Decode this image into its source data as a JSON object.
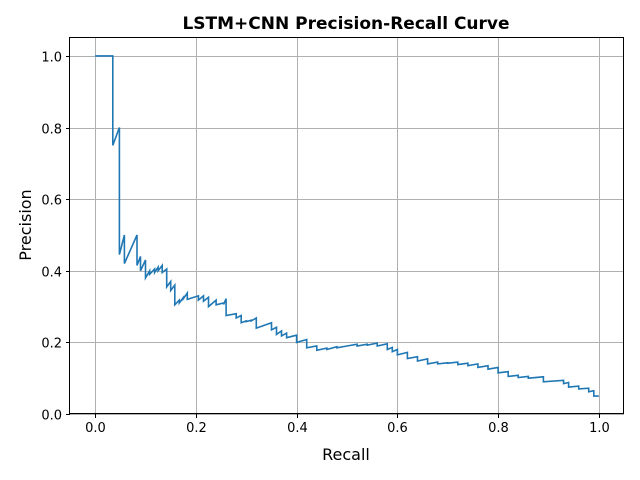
{
  "chart_data": {
    "type": "line",
    "title": "LSTM+CNN Precision-Recall Curve",
    "xlabel": "Recall",
    "ylabel": "Precision",
    "xlim": [
      -0.05,
      1.05
    ],
    "ylim": [
      0.0,
      1.05
    ],
    "xticks": [
      "0.0",
      "0.2",
      "0.4",
      "0.6",
      "0.8",
      "1.0"
    ],
    "yticks": [
      "0.0",
      "0.2",
      "0.4",
      "0.6",
      "0.8",
      "1.0"
    ],
    "grid": true,
    "line_color": "#1f77b4",
    "series": [
      {
        "x": [
          0.0,
          0.035,
          0.035,
          0.048,
          0.048,
          0.058,
          0.058,
          0.083,
          0.083,
          0.09,
          0.09,
          0.1,
          0.1,
          0.108,
          0.108,
          0.118,
          0.118,
          0.125,
          0.125,
          0.133,
          0.133,
          0.142,
          0.142,
          0.15,
          0.15,
          0.158,
          0.158,
          0.167,
          0.167,
          0.175,
          0.175,
          0.183,
          0.183,
          0.205,
          0.205,
          0.215,
          0.215,
          0.225,
          0.225,
          0.24,
          0.24,
          0.255,
          0.255,
          0.26,
          0.26,
          0.28,
          0.28,
          0.29,
          0.29,
          0.3,
          0.3,
          0.31,
          0.31,
          0.32,
          0.32,
          0.35,
          0.35,
          0.36,
          0.36,
          0.37,
          0.37,
          0.38,
          0.38,
          0.4,
          0.4,
          0.42,
          0.42,
          0.44,
          0.44,
          0.46,
          0.46,
          0.48,
          0.48,
          0.5,
          0.5,
          0.52,
          0.52,
          0.54,
          0.54,
          0.56,
          0.56,
          0.58,
          0.58,
          0.59,
          0.59,
          0.6,
          0.6,
          0.62,
          0.62,
          0.64,
          0.64,
          0.66,
          0.66,
          0.68,
          0.68,
          0.7,
          0.7,
          0.72,
          0.72,
          0.74,
          0.74,
          0.76,
          0.76,
          0.78,
          0.78,
          0.8,
          0.8,
          0.82,
          0.82,
          0.84,
          0.84,
          0.86,
          0.86,
          0.89,
          0.89,
          0.93,
          0.93,
          0.94,
          0.94,
          0.96,
          0.96,
          0.98,
          0.98,
          0.99,
          0.99,
          1.0
        ],
        "y": [
          1.0,
          1.0,
          0.75,
          0.8,
          0.445,
          0.5,
          0.42,
          0.5,
          0.415,
          0.44,
          0.4,
          0.43,
          0.38,
          0.4,
          0.39,
          0.405,
          0.395,
          0.41,
          0.4,
          0.415,
          0.395,
          0.405,
          0.355,
          0.37,
          0.345,
          0.36,
          0.305,
          0.318,
          0.31,
          0.325,
          0.322,
          0.338,
          0.32,
          0.33,
          0.318,
          0.33,
          0.315,
          0.326,
          0.3,
          0.318,
          0.305,
          0.31,
          0.306,
          0.322,
          0.275,
          0.28,
          0.268,
          0.275,
          0.255,
          0.26,
          0.258,
          0.262,
          0.26,
          0.268,
          0.24,
          0.255,
          0.235,
          0.242,
          0.222,
          0.232,
          0.218,
          0.226,
          0.213,
          0.22,
          0.2,
          0.208,
          0.185,
          0.19,
          0.178,
          0.184,
          0.18,
          0.188,
          0.185,
          0.19,
          0.19,
          0.195,
          0.19,
          0.195,
          0.192,
          0.198,
          0.19,
          0.196,
          0.18,
          0.186,
          0.174,
          0.18,
          0.165,
          0.172,
          0.155,
          0.16,
          0.148,
          0.154,
          0.14,
          0.145,
          0.14,
          0.143,
          0.142,
          0.145,
          0.138,
          0.142,
          0.135,
          0.14,
          0.13,
          0.135,
          0.125,
          0.13,
          0.115,
          0.118,
          0.105,
          0.108,
          0.102,
          0.105,
          0.1,
          0.104,
          0.09,
          0.094,
          0.085,
          0.088,
          0.075,
          0.078,
          0.07,
          0.072,
          0.062,
          0.065,
          0.05,
          0.05
        ]
      }
    ]
  }
}
